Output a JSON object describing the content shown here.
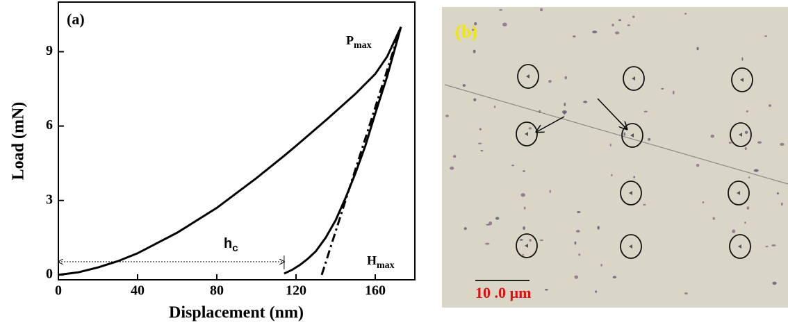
{
  "chart_data": {
    "type": "line",
    "panel_label": "(a)",
    "xlabel": "Displacement (nm)",
    "ylabel": "Load (mN)",
    "xlim": [
      0,
      180
    ],
    "ylim": [
      -0.2,
      11
    ],
    "xticks": [
      0,
      40,
      80,
      120,
      160
    ],
    "yticks": [
      0,
      3,
      6,
      9
    ],
    "annotations": {
      "pmax": {
        "text": "P",
        "sub": "max"
      },
      "hmax": {
        "text": "H",
        "sub": "max"
      },
      "hc": {
        "text": "h",
        "sub": "c"
      }
    },
    "series": [
      {
        "color": "#000000",
        "style": "solid",
        "x": [
          0,
          10,
          20,
          30,
          40,
          60,
          80,
          100,
          114,
          120,
          136,
          150,
          160,
          166,
          173
        ],
        "values": [
          0,
          0.1,
          0.3,
          0.55,
          0.87,
          1.7,
          2.7,
          3.9,
          4.8,
          5.2,
          6.3,
          7.3,
          8.1,
          8.8,
          10
        ]
      },
      {
        "color": "#000000",
        "style": "solid",
        "x": [
          114,
          118,
          122,
          126,
          130,
          135,
          140,
          145,
          150,
          155,
          160,
          166,
          173
        ],
        "values": [
          0.05,
          0.2,
          0.4,
          0.65,
          0.95,
          1.5,
          2.2,
          3.1,
          4.1,
          5.2,
          6.5,
          8.0,
          10
        ]
      },
      {
        "color": "#000000",
        "style": "dashdot",
        "x": [
          133,
          173
        ],
        "values": [
          0,
          10
        ]
      }
    ]
  },
  "micrograph": {
    "label": "(b)",
    "scale_bar": "10 .0 µm"
  }
}
